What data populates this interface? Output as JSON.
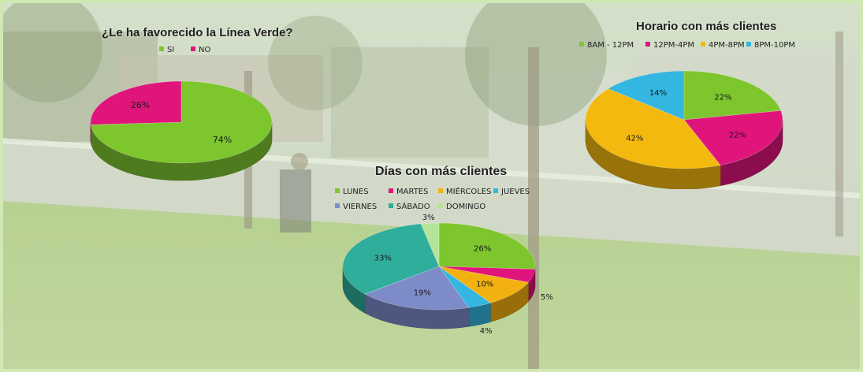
{
  "chart_data": [
    {
      "type": "pie",
      "title": "¿Le ha favorecido la Línea Verde?",
      "categories": [
        "SI",
        "NO"
      ],
      "values": [
        74,
        26
      ],
      "value_labels": [
        "74%",
        "26%"
      ],
      "colors": [
        "#7dc62e",
        "#e0157c"
      ],
      "legend": "top"
    },
    {
      "type": "pie",
      "title": "Horario con más clientes",
      "categories": [
        "8AM - 12PM",
        "12PM-4PM",
        "4PM-8PM",
        "8PM-10PM"
      ],
      "values": [
        22,
        22,
        42,
        14
      ],
      "value_labels": [
        "22%",
        "22%",
        "42%",
        "14%"
      ],
      "colors": [
        "#7dc62e",
        "#e0157c",
        "#f3b90f",
        "#33b6e0"
      ],
      "legend": "top"
    },
    {
      "type": "pie",
      "title": "Días con más clientes",
      "categories": [
        "LUNES",
        "MARTES",
        "MIÉRCOLES",
        "JUEVES",
        "VIERNES",
        "SÁBADO",
        "DOMINGO"
      ],
      "values": [
        26,
        5,
        10,
        4,
        19,
        33,
        3
      ],
      "value_labels": [
        "26%",
        "5%",
        "10%",
        "4%",
        "19%",
        "33%",
        "3%"
      ],
      "colors": [
        "#7dc62e",
        "#e0157c",
        "#f3b10f",
        "#33b6e0",
        "#7d8cc9",
        "#2fae9b",
        "#b6e39a"
      ],
      "legend": "top"
    }
  ]
}
